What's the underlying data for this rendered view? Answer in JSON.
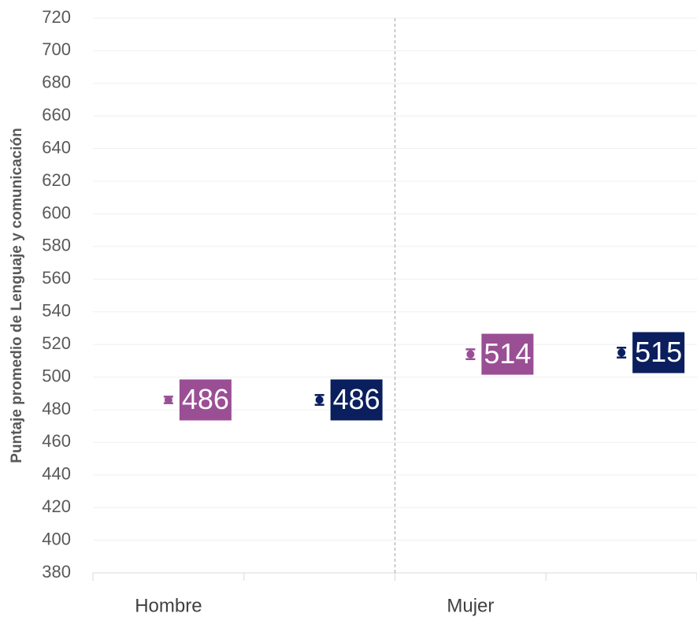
{
  "chart_data": {
    "type": "errorbar",
    "y_label": "Puntaje promedio de Lenguaje y comunicación",
    "categories": [
      "Hombre",
      "Mujer"
    ],
    "series": [
      {
        "color": "#9a4f95",
        "values": [
          486,
          514
        ],
        "errors": [
          2,
          3
        ]
      },
      {
        "color": "#0b1f5e",
        "values": [
          486,
          515
        ],
        "errors": [
          3,
          3
        ]
      }
    ],
    "ylim": [
      380,
      720
    ],
    "yticks": [
      380,
      400,
      420,
      440,
      460,
      480,
      500,
      520,
      540,
      560,
      580,
      600,
      620,
      640,
      660,
      680,
      700,
      720
    ],
    "grid": true
  }
}
